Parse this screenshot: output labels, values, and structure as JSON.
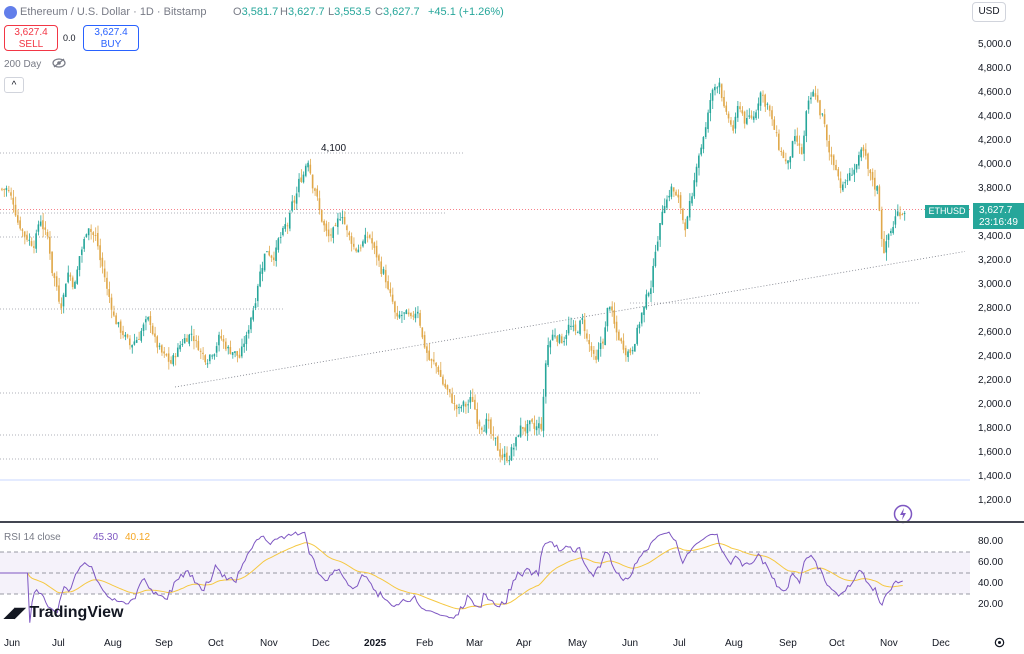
{
  "header": {
    "title": "Ethereum / U.S. Dollar · 1D · Bitstamp",
    "ohlc": [
      {
        "k": "O",
        "v": "3,581.7"
      },
      {
        "k": "H",
        "v": "3,627.7"
      },
      {
        "k": "L",
        "v": "3,553.5"
      },
      {
        "k": "C",
        "v": "3,627.7"
      }
    ],
    "change": "+45.1 (+1.26%)"
  },
  "trade": {
    "sell_price": "3,627.4",
    "sell_label": "SELL",
    "spread": "0.0",
    "buy_price": "3,627.4",
    "buy_label": "BUY"
  },
  "indicators": {
    "ma_label": "200 Day",
    "collapse": "^"
  },
  "currency": "USD",
  "price_axis": [
    "5,000.0",
    "4,800.0",
    "4,600.0",
    "4,400.0",
    "4,200.0",
    "4,000.0",
    "3,800.0",
    "3,600.0",
    "3,400.0",
    "3,200.0",
    "3,000.0",
    "2,800.0",
    "2,600.0",
    "2,400.0",
    "2,200.0",
    "2,000.0",
    "1,800.0",
    "1,600.0",
    "1,400.0",
    "1,200.0"
  ],
  "last_price": {
    "symbol": "ETHUSD",
    "price": "3,627.7",
    "countdown": "23:16:49"
  },
  "annotation": "4,100",
  "rsi": {
    "title": "RSI 14 close",
    "value": "45.30",
    "ma_value": "40.12",
    "axis": [
      "80.00",
      "60.00",
      "40.00",
      "20.00"
    ]
  },
  "time_axis": [
    "Jun",
    "Jul",
    "Aug",
    "Sep",
    "Oct",
    "Nov",
    "Dec",
    "2025",
    "Feb",
    "Mar",
    "Apr",
    "May",
    "Jun",
    "Jul",
    "Aug",
    "Sep",
    "Oct",
    "Nov",
    "Dec"
  ],
  "logo": "TradingView",
  "colors": {
    "up": "#26a69a",
    "down": "#e0a84a",
    "rsi": "#7e57c2",
    "rsi_ma": "#f5c842"
  },
  "chart_data": {
    "type": "candlestick",
    "series_anchor_closes": [
      3800,
      3700,
      3500,
      3400,
      3350,
      3550,
      3400,
      3050,
      2850,
      3100,
      3000,
      3300,
      3500,
      3400,
      3150,
      2900,
      2700,
      2600,
      2500,
      2550,
      2650,
      2700,
      2500,
      2400,
      2350,
      2450,
      2550,
      2600,
      2500,
      2400,
      2450,
      2550,
      2500,
      2450,
      2400,
      2550,
      2800,
      3100,
      3300,
      3250,
      3400,
      3500,
      3700,
      3900,
      4050,
      3800,
      3550,
      3400,
      3450,
      3600,
      3400,
      3300,
      3350,
      3400,
      3250,
      3100,
      2900,
      2700,
      2750,
      2700,
      2800,
      2500,
      2350,
      2300,
      2150,
      2050,
      1950,
      2000,
      2050,
      1850,
      1850,
      1700,
      1600,
      1570,
      1650,
      1800,
      1800,
      1800,
      1830,
      2500,
      2600,
      2550,
      2650,
      2600,
      2700,
      2500,
      2350,
      2550,
      2850,
      2600,
      2500,
      2450,
      2600,
      2800,
      3000,
      3400,
      3700,
      3800,
      3700,
      3500,
      3700,
      4100,
      4300,
      4600,
      4700,
      4400,
      4300,
      4500,
      4350,
      4400,
      4600,
      4500,
      4300,
      4100,
      4000,
      4200,
      4100,
      4500,
      4600,
      4400,
      4100,
      4000,
      3800,
      3900,
      4000,
      4100,
      3900,
      3800,
      3300,
      3450,
      3600,
      3627
    ],
    "reference_levels": [
      4100,
      3600,
      3600,
      3400,
      2800,
      2100,
      1750,
      1550,
      2850
    ],
    "rsi_axis": [
      80,
      60,
      40,
      20
    ],
    "rsi_last": 45.3,
    "rsi_ma_last": 40.12
  }
}
